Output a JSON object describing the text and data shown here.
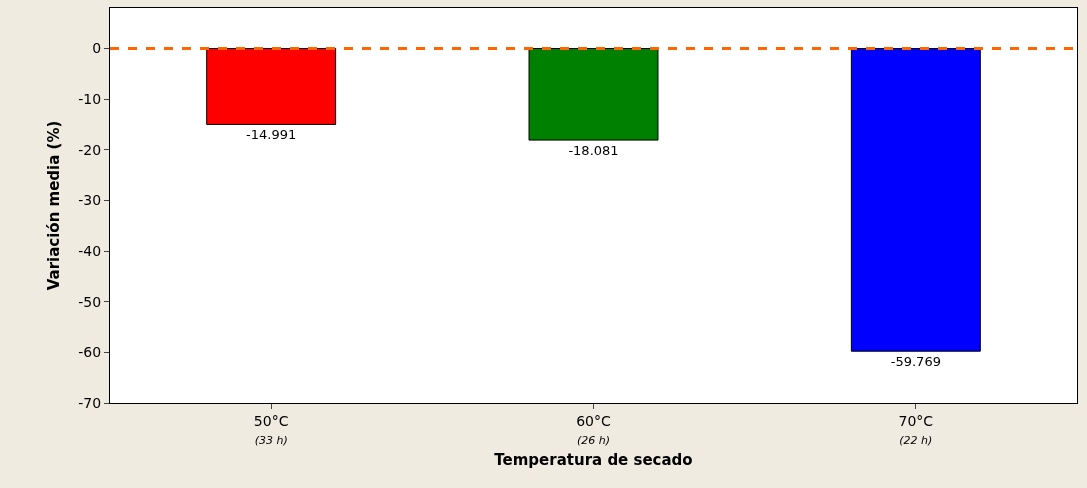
{
  "chart_data": {
    "type": "bar",
    "xlabel": "Temperatura de secado",
    "ylabel": "Variación media (%)",
    "categories": [
      "50°C\n(33 h)",
      "60°C\n(26 h)",
      "70°C\n(22 h)"
    ],
    "values": [
      -14.991,
      -18.081,
      -59.769
    ],
    "colors": [
      "#ff0000",
      "#008000",
      "#0000ff"
    ],
    "ylim": [
      -70,
      8
    ],
    "yticks": [
      -70,
      -60,
      -50,
      -40,
      -30,
      -20,
      -10,
      0
    ],
    "ref_lines": [
      {
        "axis": "y",
        "value": 0,
        "color": "#ff6600",
        "line_style": "dashed"
      }
    ],
    "data_labels": true
  }
}
